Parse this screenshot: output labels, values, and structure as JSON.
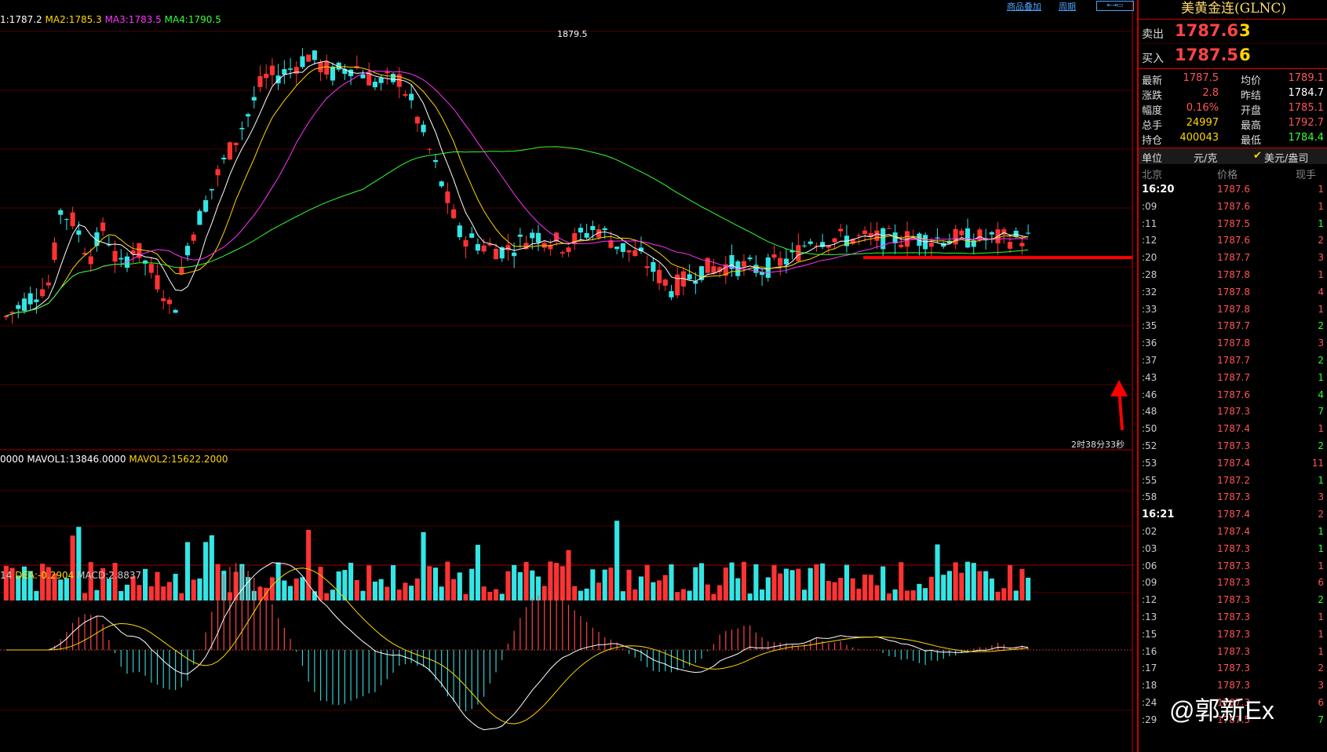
{
  "toolbar": {
    "overlay_label": "商品叠加",
    "period_label": "周期"
  },
  "main_legend": {
    "ma1": "1:1787.2",
    "ma2": "MA2:1785.3",
    "ma3": "MA3:1783.5",
    "ma4": "MA4:1790.5",
    "colors": {
      "ma1": "#ffffff",
      "ma2": "#ffd700",
      "ma3": "#ff33ff",
      "ma4": "#33ff33"
    }
  },
  "vol_legend": {
    "vol": "0000",
    "mavol1": "MAVOL1:13846.0000",
    "mavol2": "MAVOL2:15622.2000"
  },
  "macd_legend": {
    "diff": "14",
    "dea": "DEA:-0.2904",
    "macd": "MACD:2.8837"
  },
  "countdown": "2时38分33秒",
  "peak_label": "1879.5",
  "chart_data": {
    "type": "candlestick",
    "high_annotation": 1879.5,
    "support_line_price": 1795,
    "candles_count": 170,
    "price_range": [
      1740,
      1890
    ],
    "colors": {
      "up": "#ff3333",
      "down": "#33e6e6",
      "support": "#ff0000"
    }
  },
  "panel": {
    "title": "美黄金连(GLNC)",
    "sell": {
      "label": "卖出",
      "price": "1787.6",
      "qty": "3"
    },
    "buy": {
      "label": "买入",
      "price": "1787.5",
      "qty": "6"
    },
    "quotes": [
      {
        "l": "最新",
        "v": "1787.5",
        "c": "#ff5555",
        "l2": "均价",
        "v2": "1789.1",
        "c2": "#ff5555"
      },
      {
        "l": "涨跌",
        "v": "2.8",
        "c": "#ff5555",
        "l2": "昨结",
        "v2": "1784.7",
        "c2": "#ffffff"
      },
      {
        "l": "幅度",
        "v": "0.16%",
        "c": "#ff5555",
        "l2": "开盘",
        "v2": "1785.1",
        "c2": "#ff5555"
      },
      {
        "l": "总手",
        "v": "24997",
        "c": "#ffd700",
        "l2": "最高",
        "v2": "1792.7",
        "c2": "#ff5555"
      },
      {
        "l": "持仓",
        "v": "400043",
        "c": "#ffd700",
        "l2": "最低",
        "v2": "1784.4",
        "c2": "#33ff33"
      }
    ],
    "unit": {
      "label": "单位",
      "opt1": "元/克",
      "opt2": "美元/盎司",
      "check": "✔"
    },
    "ticks_header": {
      "time": "北京",
      "price": "价格",
      "qty": "现手"
    },
    "ticks": [
      {
        "t": "16:20",
        "p": "1787.6",
        "q": "1",
        "qc": "#ff5555"
      },
      {
        "t": ":09",
        "p": "1787.6",
        "q": "1",
        "qc": "#ff5555"
      },
      {
        "t": ":11",
        "p": "1787.5",
        "q": "1",
        "qc": "#33ff33"
      },
      {
        "t": ":12",
        "p": "1787.6",
        "q": "2",
        "qc": "#ff5555"
      },
      {
        "t": ":20",
        "p": "1787.7",
        "q": "3",
        "qc": "#ff5555"
      },
      {
        "t": ":28",
        "p": "1787.8",
        "q": "1",
        "qc": "#ff5555"
      },
      {
        "t": ":32",
        "p": "1787.8",
        "q": "4",
        "qc": "#ff5555"
      },
      {
        "t": ":33",
        "p": "1787.8",
        "q": "1",
        "qc": "#ff5555"
      },
      {
        "t": ":35",
        "p": "1787.7",
        "q": "2",
        "qc": "#33ff33"
      },
      {
        "t": ":36",
        "p": "1787.8",
        "q": "3",
        "qc": "#ff5555"
      },
      {
        "t": ":37",
        "p": "1787.7",
        "q": "2",
        "qc": "#33ff33"
      },
      {
        "t": ":43",
        "p": "1787.7",
        "q": "1",
        "qc": "#33ff33"
      },
      {
        "t": ":46",
        "p": "1787.6",
        "q": "4",
        "qc": "#33ff33"
      },
      {
        "t": ":48",
        "p": "1787.3",
        "q": "7",
        "qc": "#33ff33"
      },
      {
        "t": ":50",
        "p": "1787.4",
        "q": "1",
        "qc": "#ff5555"
      },
      {
        "t": ":52",
        "p": "1787.3",
        "q": "2",
        "qc": "#33ff33"
      },
      {
        "t": ":53",
        "p": "1787.4",
        "q": "11",
        "qc": "#ff5555"
      },
      {
        "t": ":55",
        "p": "1787.2",
        "q": "1",
        "qc": "#33ff33"
      },
      {
        "t": ":58",
        "p": "1787.3",
        "q": "3",
        "qc": "#ff5555"
      },
      {
        "t": "16:21",
        "p": "1787.4",
        "q": "2",
        "qc": "#ff5555"
      },
      {
        "t": ":02",
        "p": "1787.4",
        "q": "1",
        "qc": "#33ff33"
      },
      {
        "t": ":03",
        "p": "1787.3",
        "q": "1",
        "qc": "#33ff33"
      },
      {
        "t": ":06",
        "p": "1787.3",
        "q": "1",
        "qc": "#ff5555"
      },
      {
        "t": ":09",
        "p": "1787.3",
        "q": "6",
        "qc": "#ff5555"
      },
      {
        "t": ":12",
        "p": "1787.3",
        "q": "2",
        "qc": "#33ff33"
      },
      {
        "t": ":13",
        "p": "1787.3",
        "q": "1",
        "qc": "#ff5555"
      },
      {
        "t": ":15",
        "p": "1787.3",
        "q": "1",
        "qc": "#ff5555"
      },
      {
        "t": ":16",
        "p": "1787.3",
        "q": "1",
        "qc": "#ff5555"
      },
      {
        "t": ":17",
        "p": "1787.3",
        "q": "2",
        "qc": "#ff5555"
      },
      {
        "t": ":18",
        "p": "1787.3",
        "q": "3",
        "qc": "#ff5555"
      },
      {
        "t": ":24",
        "p": "1787.3",
        "q": "6",
        "qc": "#ff5555"
      },
      {
        "t": ":29",
        "p": "1787.5",
        "q": "7",
        "qc": "#33ff33"
      }
    ]
  },
  "watermark": "@郭新Ex"
}
